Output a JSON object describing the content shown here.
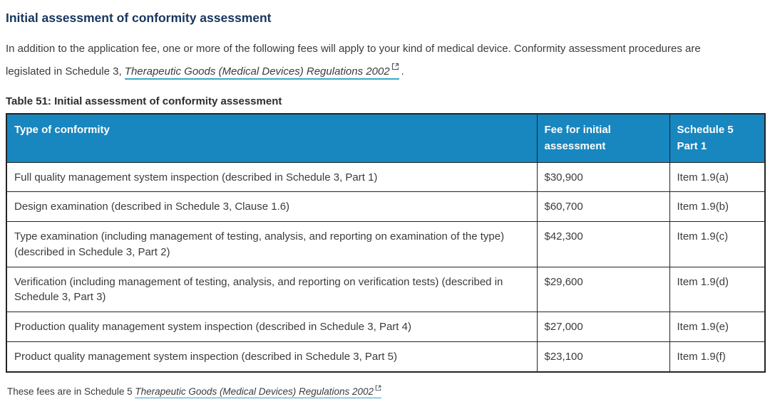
{
  "page": {
    "title": "Initial assessment of conformity assessment",
    "intro": {
      "before_link": "In addition to the application fee, one or more of the following fees will apply to your kind of medical device. Conformity assessment procedures are legislated in Schedule 3, ",
      "link_text": "Therapeutic Goods (Medical Devices) Regulations 2002",
      "after_link": "."
    },
    "table_caption": "Table 51: Initial assessment of conformity assessment",
    "footnote": {
      "before_link": "These fees are in Schedule 5 ",
      "link_text": "Therapeutic Goods (Medical Devices) Regulations 2002"
    }
  },
  "table": {
    "headers": [
      "Type of conformity",
      "Fee for initial assessment",
      "Schedule 5 Part 1"
    ],
    "rows": [
      {
        "type": "Full quality management system inspection (described in Schedule 3, Part 1)",
        "fee": "$30,900",
        "item": "Item 1.9(a)"
      },
      {
        "type": "Design examination (described in Schedule 3, Clause 1.6)",
        "fee": "$60,700",
        "item": "Item 1.9(b)"
      },
      {
        "type": "Type examination (including management of testing, analysis, and reporting on examination of the type) (described in Schedule 3, Part 2)",
        "fee": "$42,300",
        "item": "Item 1.9(c)"
      },
      {
        "type": "Verification (including management of testing, analysis, and reporting on verification tests) (described in Schedule 3, Part 3)",
        "fee": "$29,600",
        "item": "Item 1.9(d)"
      },
      {
        "type": "Production quality management system inspection (described in Schedule 3, Part 4)",
        "fee": "$27,000",
        "item": "Item 1.9(e)"
      },
      {
        "type": "Product quality management system inspection (described in Schedule 3, Part 5)",
        "fee": "$23,100",
        "item": "Item 1.9(f)"
      }
    ]
  },
  "icons": {
    "external_link": "external-link-icon"
  },
  "colors": {
    "heading": "#17365d",
    "body_text": "#3b3b3b",
    "table_header_bg": "#1886bf",
    "table_border": "#242424",
    "link_underline": "#3aa8c6"
  }
}
